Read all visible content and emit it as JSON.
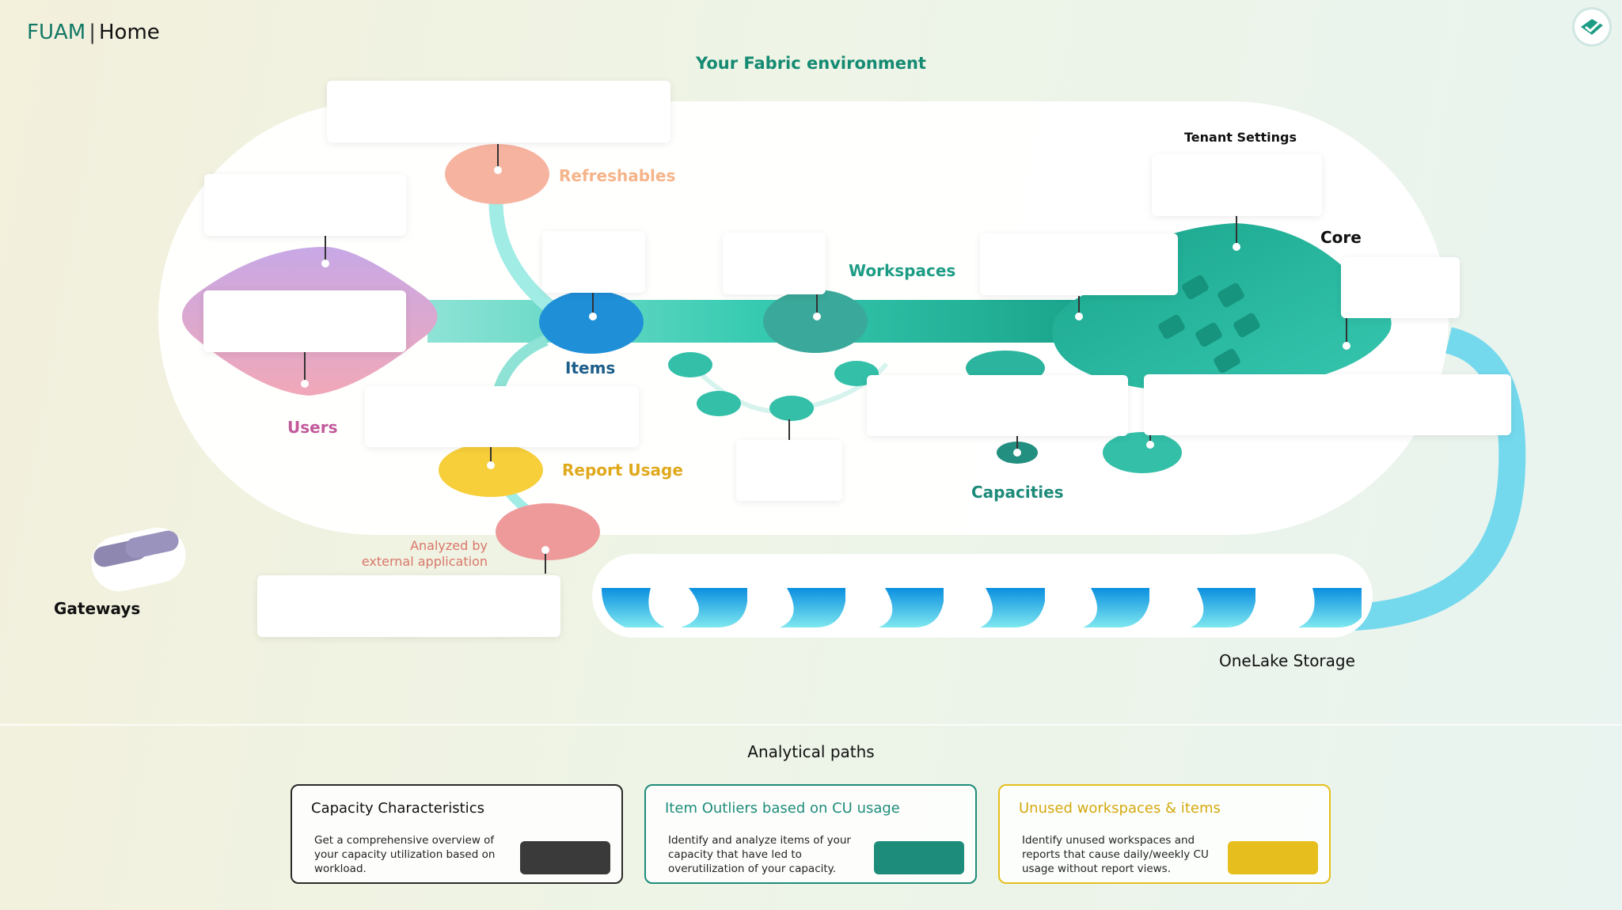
{
  "header": {
    "brand": "FUAM",
    "separator": "|",
    "page": "Home"
  },
  "environment_title": "Your Fabric environment",
  "nodes": {
    "refreshables": "Refreshables",
    "users": "Users",
    "items": "Items",
    "workspaces": "Workspaces",
    "tenant_settings": "Tenant Settings",
    "core": "Core",
    "report_usage": "Report Usage",
    "analyzed_line1": "Analyzed by",
    "analyzed_line2": "external application",
    "capacities": "Capacities",
    "gateways": "Gateways",
    "onelake": "OneLake Storage"
  },
  "analytical_title": "Analytical paths",
  "paths": [
    {
      "title": "Capacity Characteristics",
      "desc": "Get a comprehensive overview of your capacity utilization based on workload.",
      "color": "#3a3a3a"
    },
    {
      "title": "Item Outliers based on CU usage",
      "desc": "Identify and analyze items of your capacity that have led to overutilization of your capacity.",
      "color": "#1e8c7a"
    },
    {
      "title": "Unused workspaces & items",
      "desc": "Identify unused workspaces and reports that cause daily/weekly CU usage without report views.",
      "color": "#e6bf1e"
    }
  ],
  "colors": {
    "brand": "#117865",
    "teal": "#1d9c85",
    "users": "#c25a9a",
    "refresh": "#f5b48a",
    "report": "#e0a91c",
    "analyzed": "#d9776a"
  }
}
